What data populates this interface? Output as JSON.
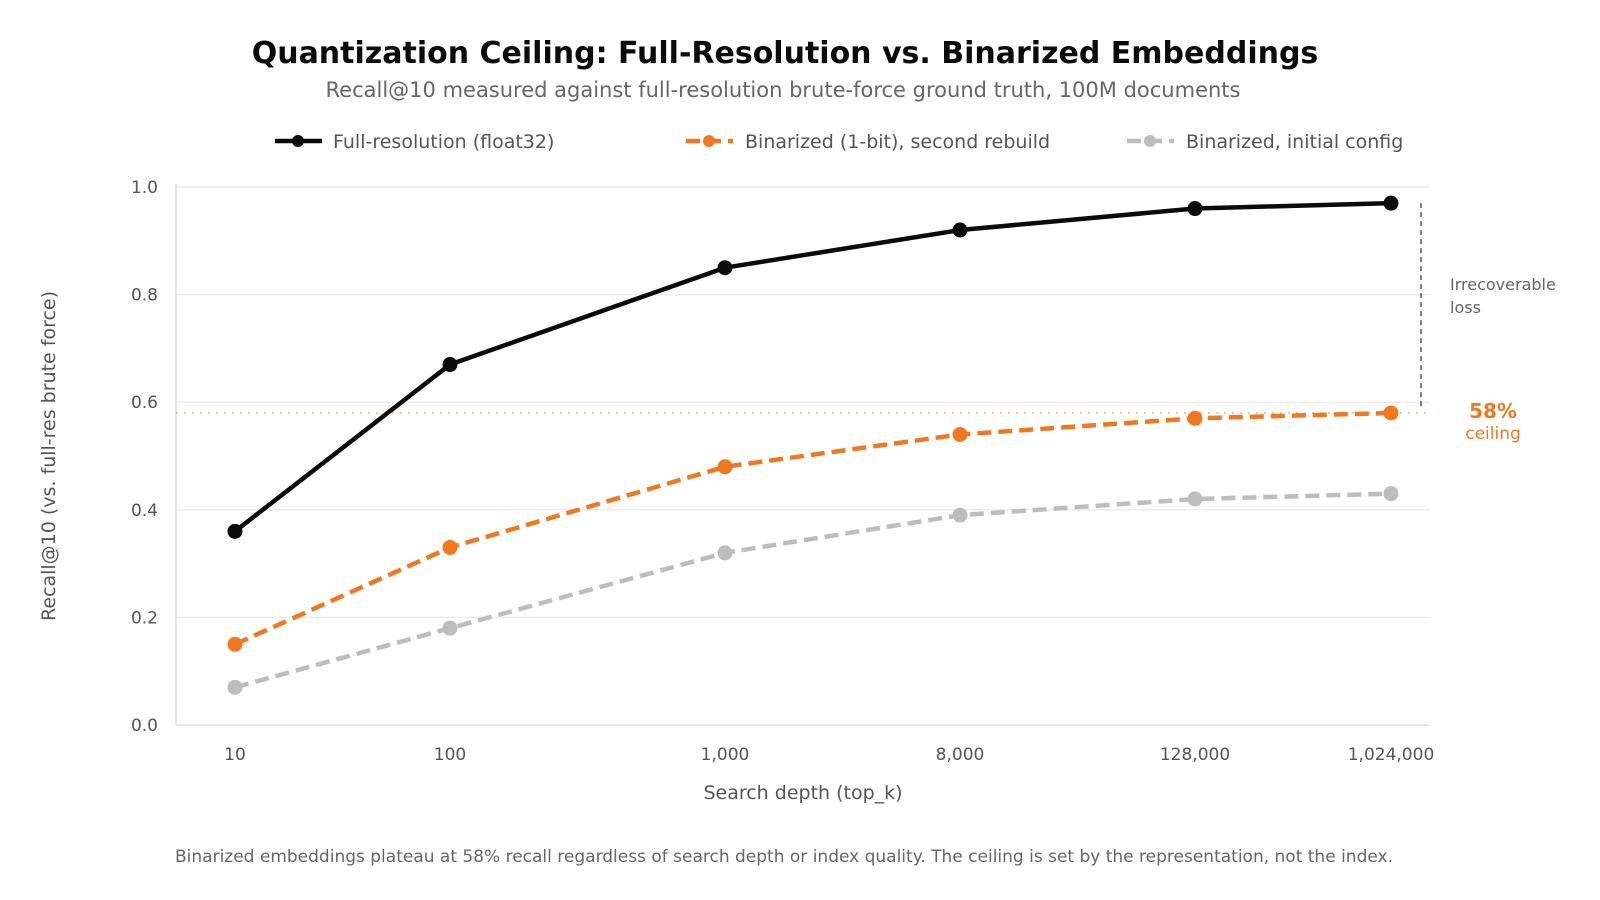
{
  "chart_data": {
    "type": "line",
    "title": "Quantization Ceiling: Full-Resolution vs. Binarized Embeddings",
    "subtitle": "Recall@10 measured against full-resolution brute-force ground truth, 100M documents",
    "xlabel": "Search depth (top_k)",
    "ylabel": "Recall@10 (vs. full-res brute force)",
    "x": [
      "10",
      "100",
      "1,000",
      "8,000",
      "128,000",
      "1,024,000"
    ],
    "ylim": [
      0.0,
      1.0
    ],
    "yticks": [
      "0.0",
      "0.2",
      "0.4",
      "0.6",
      "0.8",
      "1.0"
    ],
    "ytick_values": [
      0.0,
      0.2,
      0.4,
      0.6,
      0.8,
      1.0
    ],
    "grid": true,
    "legend_position": "top-center",
    "series": [
      {
        "name": "Full-resolution (float32)",
        "color": "#0b0b0b",
        "style": "solid",
        "values": [
          0.36,
          0.67,
          0.85,
          0.92,
          0.96,
          0.97
        ]
      },
      {
        "name": "Binarized (1-bit), second rebuild",
        "color": "#f07820",
        "style": "dashed",
        "values": [
          0.15,
          0.33,
          0.48,
          0.54,
          0.57,
          0.58
        ]
      },
      {
        "name": "Binarized, initial config",
        "color": "#bdbdbd",
        "style": "dashed",
        "values": [
          0.07,
          0.18,
          0.32,
          0.39,
          0.42,
          0.43
        ]
      }
    ],
    "reference_line": {
      "value": 0.58,
      "color": "#f07820"
    },
    "annotations": {
      "gap_label_line1": "Irrecoverable",
      "gap_label_line2": "loss",
      "ceiling_pct": "58%",
      "ceiling_label": "ceiling"
    },
    "footnote": "Binarized embeddings plateau at 58% recall regardless of search depth or index quality. The ceiling is set by the representation, not the index."
  }
}
